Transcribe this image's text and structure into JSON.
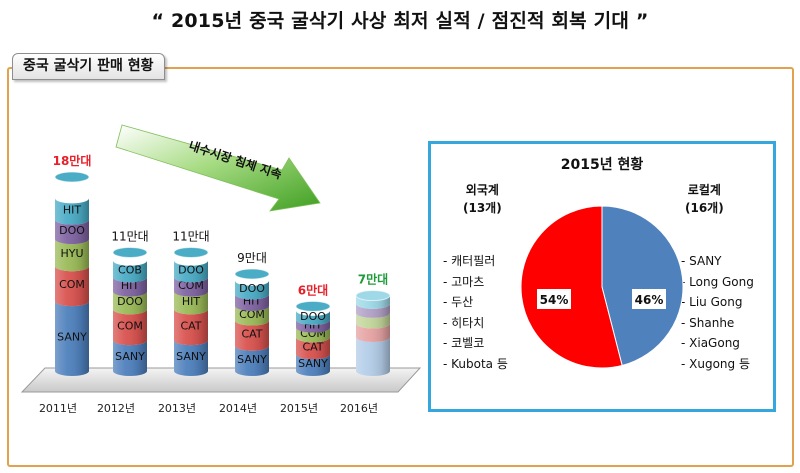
{
  "title": "“ 2015년 중국 굴삭기 사상 최저 실적 / 점진적 회복 기대 ”",
  "section_label": "중국 굴삭기 판매 현황",
  "colors": {
    "panel_border": "#e2a24d",
    "box_border": "#35a7dd",
    "highlight_red": "#e8202a",
    "highlight_green": "#1f9a3a",
    "arrow_green": "#5cb531"
  },
  "chart_data": [
    {
      "type": "bar",
      "subtype": "stacked-cylinder",
      "categories": [
        "2011년",
        "2012년",
        "2013년",
        "2014년",
        "2015년",
        "2016년"
      ],
      "totals_labels": [
        "18만대",
        "11만대",
        "11만대",
        "9만대",
        "6만대",
        "7만대"
      ],
      "totals": [
        18,
        11,
        11,
        9,
        6,
        7
      ],
      "unit": "만대",
      "annotation": "내수시장 침체 지속",
      "segments": [
        [
          {
            "label": "SANY",
            "share": 0.36,
            "color": "#4f81bd"
          },
          {
            "label": "COM",
            "share": 0.18,
            "color": "#d9534f"
          },
          {
            "label": "HYU",
            "share": 0.14,
            "color": "#9bbb59"
          },
          {
            "label": "DOO",
            "share": 0.1,
            "color": "#8064a2"
          },
          {
            "label": "HIT",
            "share": 0.11,
            "color": "#4bacc6"
          }
        ],
        [
          {
            "label": "SANY",
            "share": 0.26,
            "color": "#4f81bd"
          },
          {
            "label": "COM",
            "share": 0.26,
            "color": "#d9534f"
          },
          {
            "label": "DOO",
            "share": 0.15,
            "color": "#9bbb59"
          },
          {
            "label": "HIT",
            "share": 0.12,
            "color": "#8064a2"
          },
          {
            "label": "COB",
            "share": 0.14,
            "color": "#4bacc6"
          }
        ],
        [
          {
            "label": "SANY",
            "share": 0.26,
            "color": "#4f81bd"
          },
          {
            "label": "CAT",
            "share": 0.26,
            "color": "#d9534f"
          },
          {
            "label": "HIT",
            "share": 0.15,
            "color": "#9bbb59"
          },
          {
            "label": "COM",
            "share": 0.12,
            "color": "#8064a2"
          },
          {
            "label": "DOO",
            "share": 0.14,
            "color": "#4bacc6"
          }
        ],
        [
          {
            "label": "SANY",
            "share": 0.26,
            "color": "#4f81bd"
          },
          {
            "label": "CAT",
            "share": 0.26,
            "color": "#d9534f"
          },
          {
            "label": "COM",
            "share": 0.15,
            "color": "#9bbb59"
          },
          {
            "label": "HIT",
            "share": 0.12,
            "color": "#8064a2"
          },
          {
            "label": "DOO",
            "share": 0.14,
            "color": "#4bacc6"
          }
        ],
        [
          {
            "label": "SANY",
            "share": 0.26,
            "color": "#4f81bd"
          },
          {
            "label": "CAT",
            "share": 0.26,
            "color": "#d9534f"
          },
          {
            "label": "COM",
            "share": 0.15,
            "color": "#9bbb59"
          },
          {
            "label": "HIT",
            "share": 0.12,
            "color": "#8064a2"
          },
          {
            "label": "DOO",
            "share": 0.14,
            "color": "#4bacc6"
          }
        ],
        [
          {
            "label": "",
            "share": 0.45,
            "color": "#b4cde8"
          },
          {
            "label": "",
            "share": 0.18,
            "color": "#e6a3a3"
          },
          {
            "label": "",
            "share": 0.14,
            "color": "#c3d69b"
          },
          {
            "label": "",
            "share": 0.12,
            "color": "#b2a1c7"
          },
          {
            "label": "",
            "share": 0.11,
            "color": "#9fd9e8"
          }
        ]
      ]
    },
    {
      "type": "pie",
      "title": "2015년 현황",
      "slices": [
        {
          "label": "로컬계",
          "value": 46,
          "display": "46%",
          "color": "#4f81bd"
        },
        {
          "label": "외국계",
          "value": 54,
          "display": "54%",
          "color": "#ff0000"
        }
      ],
      "groups": {
        "foreign": {
          "name": "외국계",
          "count": "(13개)",
          "items": [
            "- 캐터필러",
            "- 고마츠",
            "- 두산",
            "- 히타치",
            "- 코벨코",
            "- Kubota 등"
          ]
        },
        "local": {
          "name": "로컬계",
          "count": "(16개)",
          "items": [
            "- SANY",
            "- Long Gong",
            "- Liu Gong",
            "- Shanhe",
            "- XiaGong",
            "- Xugong 등"
          ]
        }
      }
    }
  ]
}
